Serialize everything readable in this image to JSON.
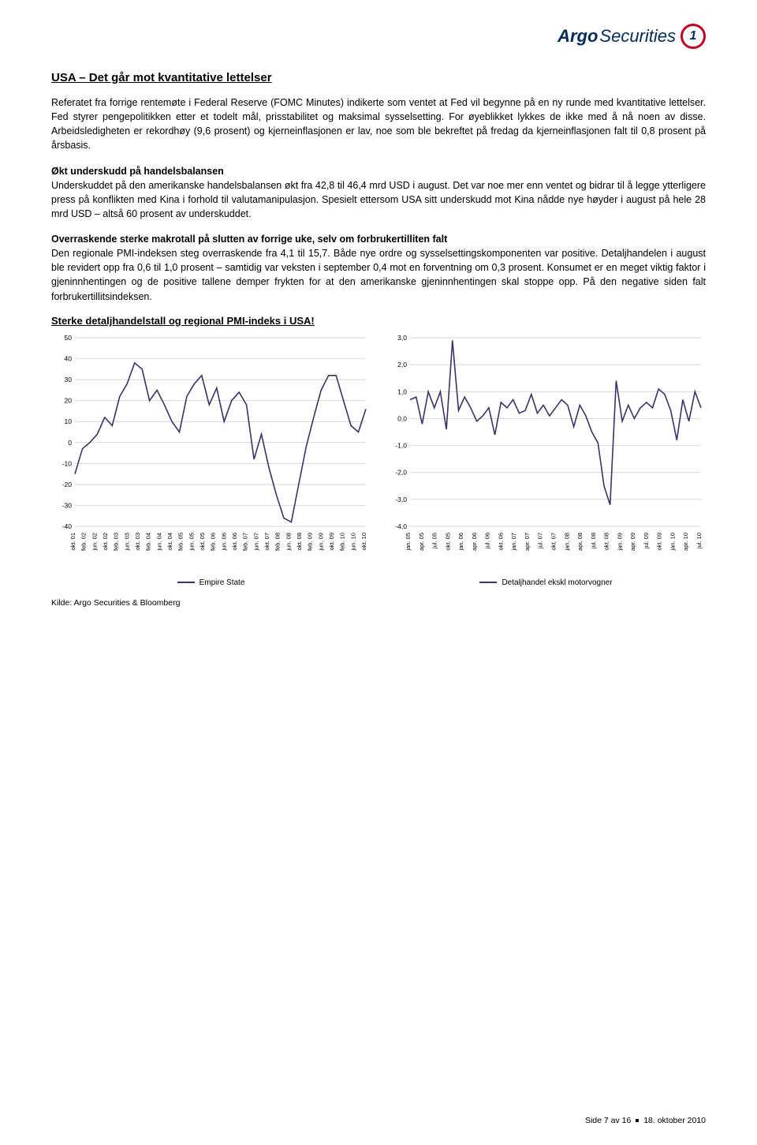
{
  "brand": {
    "name_a": "Argo",
    "name_b": "Securities",
    "mark": "1"
  },
  "title": "USA – Det går mot kvantitative lettelser",
  "paragraphs": [
    "Referatet fra forrige rentemøte i Federal Reserve (FOMC Minutes) indikerte som ventet at Fed vil begynne på en ny runde med kvantitative lettelser. Fed styrer pengepolitikken etter et todelt mål, prisstabilitet og maksimal sysselsetting. For øyeblikket lykkes de ikke med å nå noen av disse. Arbeidsledigheten er rekordhøy (9,6 prosent) og kjerneinflasjonen er lav, noe som ble bekreftet på fredag da kjerneinflasjonen falt til 0,8 prosent på årsbasis.",
    "Underskuddet på den amerikanske handelsbalansen økt fra 42,8 til 46,4 mrd USD i august. Det var noe mer enn ventet og bidrar til å legge ytterligere press på konflikten med Kina i forhold til valutamanipulasjon. Spesielt ettersom USA sitt underskudd mot Kina nådde nye høyder i august på hele 28 mrd USD – altså 60 prosent av underskuddet.",
    "Den regionale PMI-indeksen steg overraskende fra 4,1 til 15,7. Både nye ordre og sysselsettingskomponenten var positive. Detaljhandelen i august ble revidert opp fra 0,6 til 1,0 prosent – samtidig var veksten i september 0,4 mot en forventning om 0,3 prosent. Konsumet er en meget viktig faktor i gjeninnhentingen og de positive tallene demper frykten for at den amerikanske gjeninnhentingen skal stoppe opp. På den negative siden falt forbrukertillitsindeksen."
  ],
  "subheads": {
    "a": "Økt underskudd på handelsbalansen",
    "b": "Overraskende sterke makrotall på slutten av forrige uke, selv om forbrukertilliten falt"
  },
  "charts_title": "Sterke detaljhandelstall og regional PMI-indeks i USA!",
  "chart_left": {
    "legend": "Empire State",
    "ymin": -40,
    "ymax": 50,
    "ystep": 10,
    "line_color": "#40306a",
    "grid_color": "#c9c9c9",
    "bg": "#ffffff",
    "x_labels": [
      "okt. 01",
      "feb. 02",
      "jun. 02",
      "okt. 02",
      "feb. 03",
      "jun. 03",
      "okt. 03",
      "feb. 04",
      "jun. 04",
      "okt. 04",
      "feb. 05",
      "jun. 05",
      "okt. 05",
      "feb. 06",
      "jun. 06",
      "okt. 06",
      "feb. 07",
      "jun. 07",
      "okt. 07",
      "feb. 08",
      "jun. 08",
      "okt. 08",
      "feb. 09",
      "jun. 09",
      "okt. 09",
      "feb. 10",
      "jun. 10",
      "okt. 10"
    ],
    "values": [
      -15,
      -3,
      0,
      4,
      12,
      8,
      22,
      28,
      38,
      35,
      20,
      25,
      18,
      10,
      5,
      22,
      28,
      32,
      18,
      26,
      10,
      20,
      24,
      18,
      -8,
      4,
      -12,
      -25,
      -36,
      -38,
      -20,
      -2,
      12,
      25,
      32,
      32,
      20,
      8,
      5,
      16
    ]
  },
  "chart_right": {
    "legend": "Detaljhandel ekskl motorvogner",
    "ymin": -4.0,
    "ymax": 3.0,
    "ystep": 1.0,
    "line_color": "#40306a",
    "grid_color": "#c9c9c9",
    "bg": "#ffffff",
    "x_labels": [
      "jan. 05",
      "apr. 05",
      "jul. 05",
      "okt. 05",
      "jan. 06",
      "apr. 06",
      "jul. 06",
      "okt. 06",
      "jan. 07",
      "apr. 07",
      "jul. 07",
      "okt. 07",
      "jan. 08",
      "apr. 08",
      "jul. 08",
      "okt. 08",
      "jan. 09",
      "apr. 09",
      "jul. 09",
      "okt. 09",
      "jan. 10",
      "apr. 10",
      "jul. 10"
    ],
    "values": [
      0.7,
      0.8,
      -0.2,
      1.0,
      0.4,
      1.0,
      -0.4,
      2.9,
      0.3,
      0.8,
      0.4,
      -0.1,
      0.1,
      0.4,
      -0.6,
      0.6,
      0.4,
      0.7,
      0.2,
      0.3,
      0.9,
      0.2,
      0.5,
      0.1,
      0.4,
      0.7,
      0.5,
      -0.3,
      0.5,
      0.1,
      -0.5,
      -0.9,
      -2.5,
      -3.2,
      1.4,
      -0.1,
      0.5,
      0.0,
      0.4,
      0.6,
      0.4,
      1.1,
      0.9,
      0.3,
      -0.8,
      0.7,
      -0.1,
      1.0,
      0.4
    ]
  },
  "source": "Kilde: Argo Securities & Bloomberg",
  "footer": {
    "page": "Side 7 av 16",
    "date": "18. oktober 2010"
  }
}
